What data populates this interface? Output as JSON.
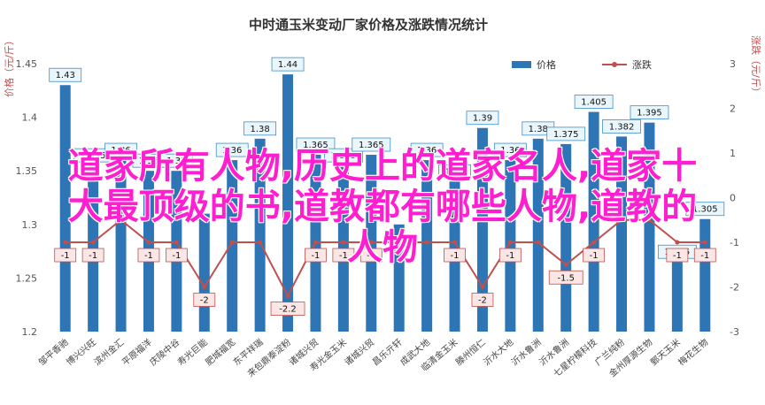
{
  "chart_data": {
    "type": "bar+line",
    "title": "中时通玉米变动厂家价格及涨跌情况统计",
    "ylabel_left": "价格（元/斤）",
    "ylabel_right": "涨跌（元/斤）",
    "ylim_left": [
      1.2,
      1.45
    ],
    "ylim_right": [
      -3,
      3
    ],
    "yticks_left": [
      "1.2",
      "1.25",
      "1.3",
      "1.35",
      "1.4",
      "1.45"
    ],
    "yticks_right": [
      "-3",
      "-2",
      "-1",
      "0",
      "1",
      "2",
      "3"
    ],
    "legend": {
      "position": "top-center",
      "price": "价格",
      "change": "涨跌"
    },
    "colors": {
      "bar": "#2e75b6",
      "line": "#c0504d"
    },
    "grid": false,
    "categories": [
      "邹平香驰",
      "博兴兴旺",
      "滨州金汇",
      "平原福洋",
      "庆陵中谷",
      "寿光巨能",
      "肥城福宽",
      "东平祥瑞",
      "来包鼎泰淀粉",
      "诸城兴贸",
      "寿光金玉米",
      "诸城兴贸",
      "昌乐亓轩",
      "成武大地",
      "临清金玉米",
      "滕州恒仁",
      "沂水大地",
      "沂水鲁洲",
      "沂水鲁洲",
      "七星柠檬科技",
      "广兰纯粉",
      "金州厚源生物",
      "鄄天玉米",
      "梅花生物"
    ],
    "price_values": [
      1.43,
      1.355,
      1.36,
      1.35,
      1.35,
      1.31,
      1.36,
      1.38,
      1.44,
      1.365,
      1.355,
      1.365,
      1.3,
      1.36,
      1.34,
      1.39,
      1.36,
      1.38,
      1.375,
      1.405,
      1.382,
      1.395,
      1.265,
      1.305
    ],
    "price_labels": [
      "1.43",
      "1.355",
      "1.36",
      "1.35",
      "1.35",
      "",
      "1.36",
      "1.38",
      "1.44",
      "1.365",
      "1.355",
      "1.365",
      "",
      "1.36",
      "1.34",
      "1.39",
      "1.36",
      "1.38",
      "1.375",
      "1.405",
      "1.382",
      "1.395",
      "1.265",
      "1.305"
    ],
    "change_values": [
      -1,
      -1,
      -0.5,
      -1,
      -1,
      -2,
      -1,
      -1,
      -2.2,
      -1,
      -1,
      -1,
      -1,
      -1,
      -1,
      -2,
      -1,
      -1,
      -1.5,
      -1,
      -0.5,
      -0.5,
      -1,
      -1
    ],
    "change_labels": [
      "-1",
      "-1",
      "",
      "-1",
      "-1",
      "-2",
      "",
      "",
      "-2.2",
      "-1",
      "-1",
      "-1",
      "",
      "",
      "-1",
      "-2",
      "-1",
      "",
      "-1.5",
      "-1",
      "",
      "",
      "-1",
      "-1"
    ]
  },
  "overlay": {
    "line1": "道家所有人物,历史上的道家名人,道家十",
    "line2": "大最顶级的书,道教都有哪些人物,道教的",
    "line3": "人物"
  }
}
